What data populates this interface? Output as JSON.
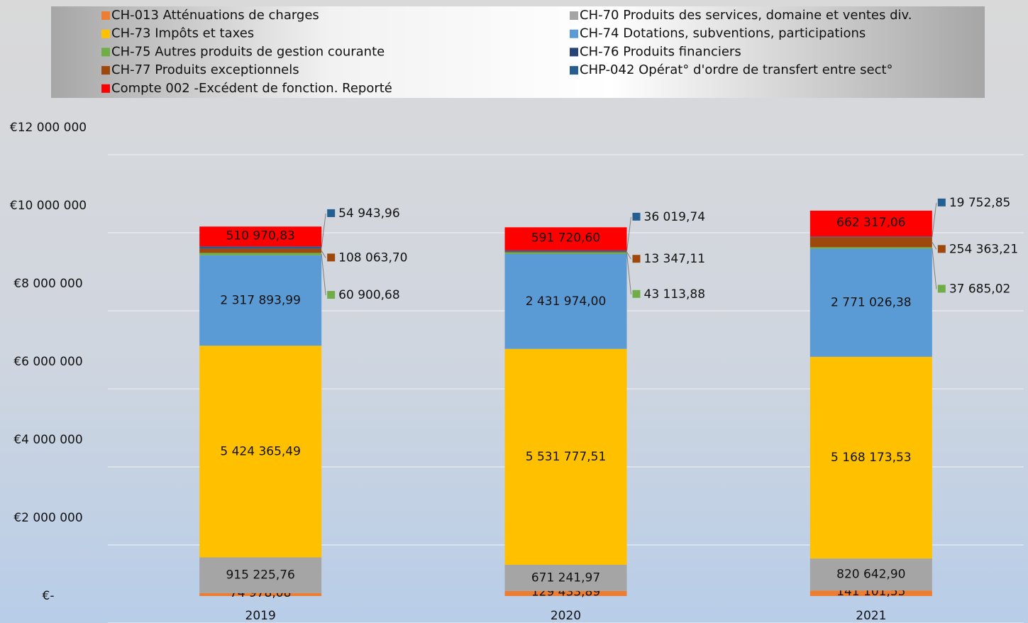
{
  "chart_data": {
    "type": "stacked_bar",
    "categories": [
      "2019",
      "2020",
      "2021"
    ],
    "series": [
      {
        "name": "CH-013 Atténuations de charges",
        "color": "#ed7d31",
        "values": [
          74978.08,
          129433.89,
          141101.55
        ],
        "value_labels": [
          "74 978,08",
          "129 433,89",
          "141 101,55"
        ]
      },
      {
        "name": "CH-70 Produits des services, domaine et ventes div.",
        "color": "#a5a5a5",
        "values": [
          915225.76,
          671241.97,
          820642.9
        ],
        "value_labels": [
          "915 225,76",
          "671 241,97",
          "820 642,90"
        ]
      },
      {
        "name": "CH-73 Impôts et taxes",
        "color": "#ffc000",
        "values": [
          5424365.49,
          5531777.51,
          5168173.53
        ],
        "value_labels": [
          "5 424 365,49",
          "5 531 777,51",
          "5 168 173,53"
        ]
      },
      {
        "name": "CH-74 Dotations, subventions, participations",
        "color": "#5b9bd5",
        "values": [
          2317893.99,
          2431974.0,
          2771026.38
        ],
        "value_labels": [
          "2 317 893,99",
          "2 431 974,00",
          "2 771 026,38"
        ]
      },
      {
        "name": "CH-75 Autres produits de gestion courante",
        "color": "#70ad47",
        "values": [
          60900.68,
          43113.88,
          37685.02
        ],
        "value_labels": [
          "60 900,68",
          "43 113,88",
          "37 685,02"
        ]
      },
      {
        "name": "CH-76 Produits financiers",
        "color": "#264478",
        "values": [
          null,
          null,
          null
        ]
      },
      {
        "name": "CH-77 Produits exceptionnels",
        "color": "#9e480e",
        "values": [
          108063.7,
          13347.11,
          254363.21
        ],
        "value_labels": [
          "108 063,70",
          "13 347,11",
          "254 363,21"
        ]
      },
      {
        "name": "CHP-042 Opérat° d'ordre de transfert entre sect°",
        "color": "#255e91",
        "values": [
          54943.96,
          36019.74,
          19752.85
        ],
        "value_labels": [
          "54 943,96",
          "36 019,74",
          "19 752,85"
        ]
      },
      {
        "name": "Compte 002 -Excédent de fonction. Reporté",
        "color": "#ff0000",
        "values": [
          510970.83,
          591720.6,
          662317.06
        ],
        "value_labels": [
          "510 970,83",
          "591 720,60",
          "662 317,06"
        ]
      }
    ],
    "ylim": [
      0,
      12000000
    ],
    "yticks": [
      {
        "value": 0,
        "label": "€-"
      },
      {
        "value": 2000000,
        "label": "€2 000 000"
      },
      {
        "value": 4000000,
        "label": "€4 000 000"
      },
      {
        "value": 6000000,
        "label": "€6 000 000"
      },
      {
        "value": 8000000,
        "label": "€8 000 000"
      },
      {
        "value": 10000000,
        "label": "€10 000 000"
      },
      {
        "value": 12000000,
        "label": "€12 000 000"
      }
    ],
    "grid": true,
    "legend": "top"
  }
}
